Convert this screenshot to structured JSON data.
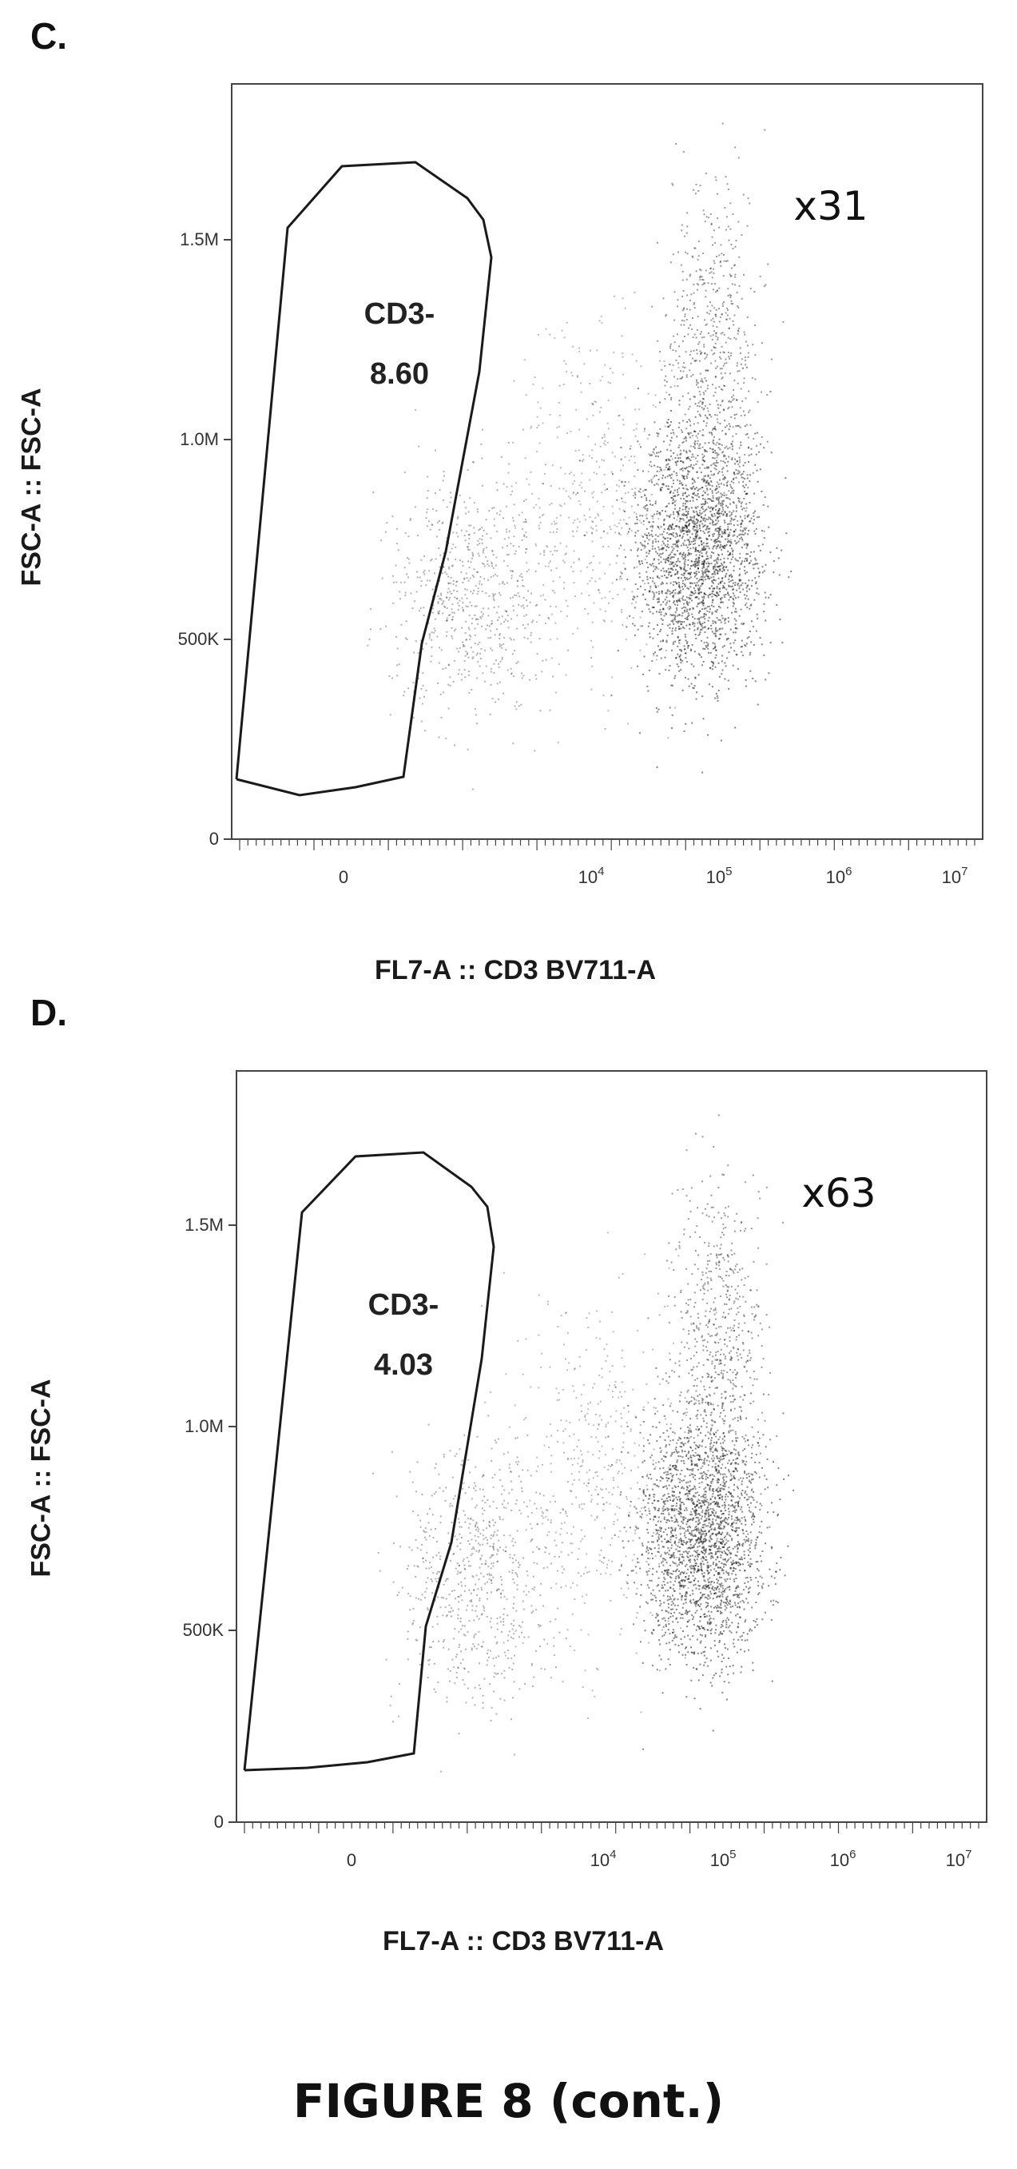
{
  "figure_caption": "FIGURE 8 (cont.)",
  "panels": [
    {
      "letter": "C.",
      "multiplier": "x31",
      "gate_name": "CD3-",
      "gate_value": "8.60",
      "xlabel": "FL7-A :: CD3 BV711-A",
      "ylabel": "FSC-A :: FSC-A"
    },
    {
      "letter": "D.",
      "multiplier": "x63",
      "gate_name": "CD3-",
      "gate_value": "4.03",
      "xlabel": "FL7-A :: CD3 BV711-A",
      "ylabel": "FSC-A :: FSC-A"
    }
  ],
  "chart_data": [
    {
      "type": "scatter",
      "title": "",
      "xlabel": "FL7-A :: CD3 BV711-A",
      "ylabel": "FSC-A :: FSC-A",
      "x_scale": "biexponential",
      "x_ticks": [
        "0",
        "10^4",
        "10^5",
        "10^6",
        "10^7"
      ],
      "y_ticks": [
        "0",
        "500K",
        "1.0M",
        "1.5M"
      ],
      "ylim": [
        0,
        1800000
      ],
      "gate": {
        "name": "CD3-",
        "percent": 8.6
      },
      "annotation": "x31"
    },
    {
      "type": "scatter",
      "title": "",
      "xlabel": "FL7-A :: CD3 BV711-A",
      "ylabel": "FSC-A :: FSC-A",
      "x_scale": "biexponential",
      "x_ticks": [
        "0",
        "10^4",
        "10^5",
        "10^6",
        "10^7"
      ],
      "y_ticks": [
        "0",
        "500K",
        "1.0M",
        "1.5M"
      ],
      "ylim": [
        0,
        1800000
      ],
      "gate": {
        "name": "CD3-",
        "percent": 4.03
      },
      "annotation": "x63"
    }
  ]
}
